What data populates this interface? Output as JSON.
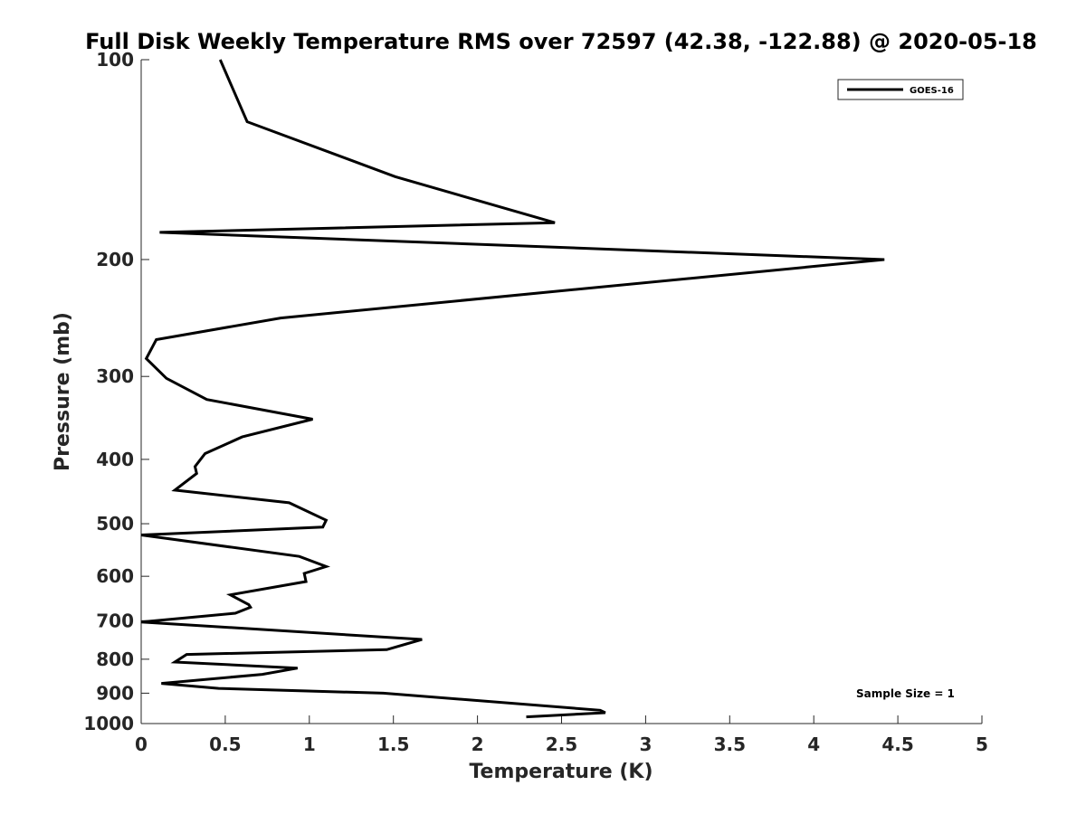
{
  "chart_data": {
    "type": "line",
    "title": "Full Disk Weekly Temperature RMS over 72597 (42.38, -122.88) @ 2020-05-18",
    "xlabel": "Temperature (K)",
    "ylabel": "Pressure (mb)",
    "xlim": [
      0,
      5
    ],
    "ylim": [
      100,
      1000
    ],
    "y_scale": "log",
    "y_reversed": true,
    "grid": false,
    "legend_position": "top-right",
    "x_ticks": [
      "0",
      "0.5",
      "1",
      "1.5",
      "2",
      "2.5",
      "3",
      "3.5",
      "4",
      "4.5",
      "5"
    ],
    "y_ticks": [
      "100",
      "200",
      "300",
      "400",
      "500",
      "600",
      "700",
      "800",
      "900",
      "1000"
    ],
    "annotation": "Sample Size = 1",
    "series": [
      {
        "name": "GOES-16",
        "color": "#000000",
        "x": [
          0.47,
          0.63,
          1.51,
          2.46,
          0.11,
          4.42,
          0.83,
          0.09,
          0.03,
          0.15,
          0.39,
          1.02,
          0.6,
          0.38,
          0.32,
          0.33,
          0.2,
          0.88,
          1.1,
          1.08,
          0.0,
          0.94,
          1.1,
          0.97,
          0.98,
          0.53,
          0.64,
          0.65,
          0.56,
          0.0,
          1.67,
          1.46,
          0.27,
          0.2,
          0.93,
          0.72,
          0.12,
          0.46,
          1.44,
          2.73,
          2.76,
          2.29
        ],
        "y": [
          100,
          124,
          150,
          176,
          182,
          200,
          245,
          264,
          282,
          302,
          325,
          348,
          370,
          392,
          410,
          420,
          445,
          465,
          494,
          506,
          520,
          560,
          580,
          594,
          611,
          640,
          662,
          668,
          682,
          703,
          747,
          774,
          787,
          808,
          825,
          843,
          870,
          885,
          900,
          955,
          963,
          977
        ]
      }
    ]
  }
}
